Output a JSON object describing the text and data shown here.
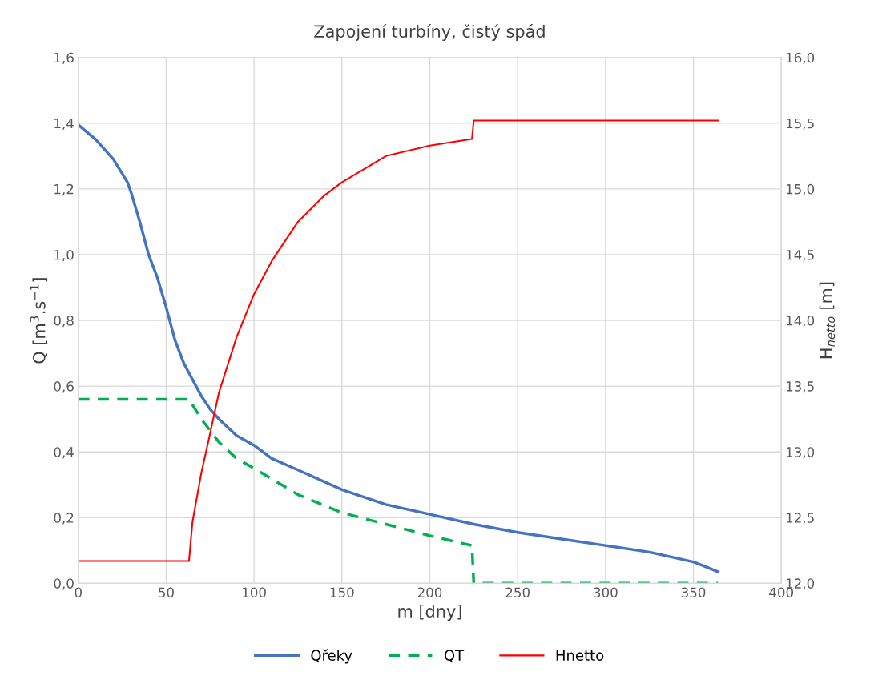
{
  "chart_data": {
    "type": "line",
    "title": "Zapojení turbíny, čistý spád",
    "xlabel": "m [dny]",
    "ylabel": "Q [m$^{3}$.s$^{−1}$]",
    "y2label": "H$_{netto}$ [m]",
    "xlim": [
      0,
      400
    ],
    "xticks": [
      0,
      50,
      100,
      150,
      200,
      250,
      300,
      350,
      400
    ],
    "ylim": [
      0,
      1.6
    ],
    "yticks": [
      {
        "value": 0,
        "label": "0,0"
      },
      {
        "value": 0.2,
        "label": "0,2"
      },
      {
        "value": 0.4,
        "label": "0,4"
      },
      {
        "value": 0.6,
        "label": "0,6"
      },
      {
        "value": 0.8,
        "label": "0,8"
      },
      {
        "value": 1.0,
        "label": "1,0"
      },
      {
        "value": 1.2,
        "label": "1,2"
      },
      {
        "value": 1.4,
        "label": "1,4"
      },
      {
        "value": 1.6,
        "label": "1,6"
      }
    ],
    "y2lim": [
      12,
      16
    ],
    "y2ticks": [
      {
        "value": 12,
        "label": "12,0"
      },
      {
        "value": 12.5,
        "label": "12,5"
      },
      {
        "value": 13,
        "label": "13,0"
      },
      {
        "value": 13.5,
        "label": "13,5"
      },
      {
        "value": 14,
        "label": "14,0"
      },
      {
        "value": 14.5,
        "label": "14,5"
      },
      {
        "value": 15,
        "label": "15,0"
      },
      {
        "value": 15.5,
        "label": "15,5"
      },
      {
        "value": 16,
        "label": "16,0"
      }
    ],
    "grid": true,
    "legend": "bottom",
    "marker": "none",
    "series": [
      {
        "name": "Qřeky",
        "color": "#4472c4",
        "line_style": "solid",
        "x": [
          0,
          10,
          20,
          28,
          30,
          35,
          40,
          45,
          50,
          55,
          60,
          63,
          70,
          75,
          80,
          90,
          100,
          110,
          125,
          150,
          175,
          200,
          225,
          250,
          275,
          300,
          325,
          350,
          355,
          364
        ],
        "values": [
          1.395,
          1.35,
          1.29,
          1.22,
          1.19,
          1.1,
          1.0,
          0.93,
          0.84,
          0.74,
          0.67,
          0.64,
          0.57,
          0.53,
          0.5,
          0.45,
          0.42,
          0.38,
          0.345,
          0.285,
          0.24,
          0.21,
          0.18,
          0.155,
          0.135,
          0.115,
          0.095,
          0.065,
          0.055,
          0.035
        ]
      },
      {
        "name": "QT",
        "color": "#00b050",
        "line_style": "dashed",
        "x": [
          0,
          63,
          70,
          80,
          90,
          100,
          125,
          150,
          175,
          200,
          224,
          225,
          364
        ],
        "values": [
          0.56,
          0.56,
          0.5,
          0.43,
          0.38,
          0.35,
          0.27,
          0.215,
          0.18,
          0.145,
          0.115,
          0.0,
          0.0
        ]
      },
      {
        "name": "Hnetto",
        "color": "#ff0000",
        "line_style": "solid",
        "axis": "y2",
        "x": [
          0,
          63,
          65,
          70,
          75,
          80,
          90,
          100,
          110,
          125,
          140,
          150,
          175,
          200,
          224,
          225,
          364
        ],
        "values": [
          12.17,
          12.17,
          12.47,
          12.84,
          13.14,
          13.45,
          13.87,
          14.2,
          14.45,
          14.75,
          14.95,
          15.05,
          15.25,
          15.33,
          15.38,
          15.52,
          15.52
        ]
      }
    ]
  }
}
